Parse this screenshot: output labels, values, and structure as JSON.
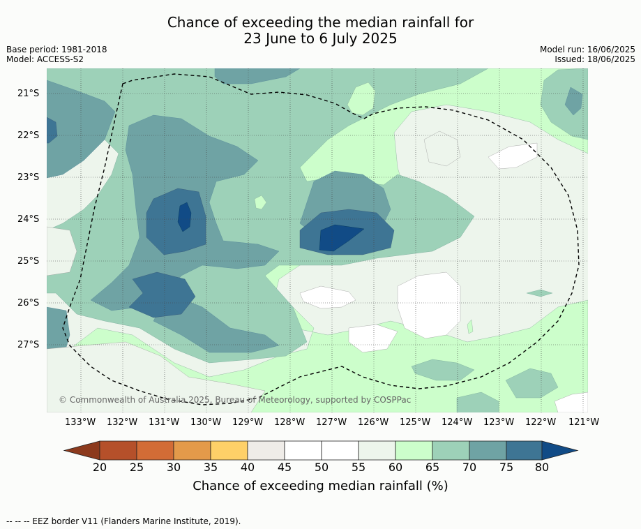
{
  "title": {
    "line1": "Chance of exceeding the median rainfall for",
    "line2": "23 June to 6 July 2025"
  },
  "meta": {
    "base_period": "Base period: 1981-2018",
    "model": "Model: ACCESS-S2",
    "model_run": "Model run: 16/06/2025",
    "issued": "Issued: 18/06/2025"
  },
  "map": {
    "lon_labels": [
      "133°W",
      "132°W",
      "131°W",
      "130°W",
      "129°W",
      "128°W",
      "127°W",
      "126°W",
      "125°W",
      "124°W",
      "123°W",
      "122°W",
      "121°W"
    ],
    "lat_labels": [
      "21°S",
      "22°S",
      "23°S",
      "24°S",
      "25°S",
      "26°S",
      "27°S"
    ],
    "copyright": "© Commonwealth of Australia 2025, Bureau of Meteorology, supported by COSPPac"
  },
  "colorbar": {
    "ticks": [
      "20",
      "25",
      "30",
      "35",
      "40",
      "45",
      "50",
      "55",
      "60",
      "65",
      "70",
      "75",
      "80"
    ],
    "label": "Chance of exceeding median rainfall (%)",
    "colors": [
      "#b5502a",
      "#d26c36",
      "#e39a4a",
      "#fed068",
      "#efece8",
      "#ffffff",
      "#ffffff",
      "#edf5ec",
      "#ccfecb",
      "#9dd1b8",
      "#6fa3a4",
      "#3e7594"
    ],
    "low_arrow_color": "#8c3a1d",
    "high_arrow_color": "#114b86"
  },
  "footer": {
    "eez_note": "--  --  -- EEZ border V11 (Flanders Marine Institute, 2019)."
  }
}
